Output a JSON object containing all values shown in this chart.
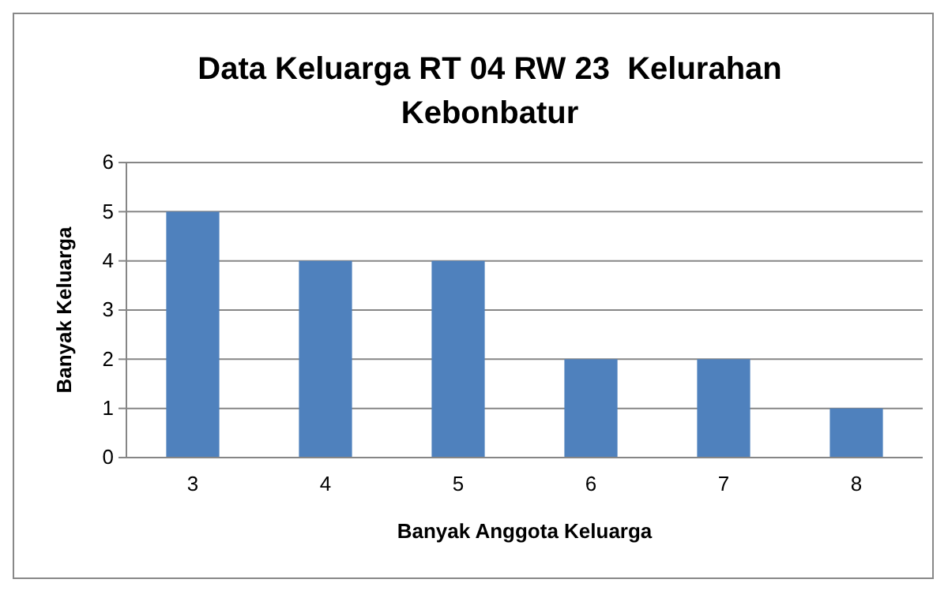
{
  "chart_data": {
    "type": "bar",
    "title": "Data Keluarga RT 04 RW 23  Kelurahan Kebonbatur",
    "xlabel": "Banyak Anggota Keluarga",
    "ylabel": "Banyak Keluarga",
    "categories": [
      "3",
      "4",
      "5",
      "6",
      "7",
      "8"
    ],
    "values": [
      5,
      4,
      4,
      2,
      2,
      1
    ],
    "color": "#4f81bd",
    "ylim": [
      0,
      6
    ],
    "yticks": [
      0,
      1,
      2,
      3,
      4,
      5,
      6
    ],
    "grid": "y"
  }
}
